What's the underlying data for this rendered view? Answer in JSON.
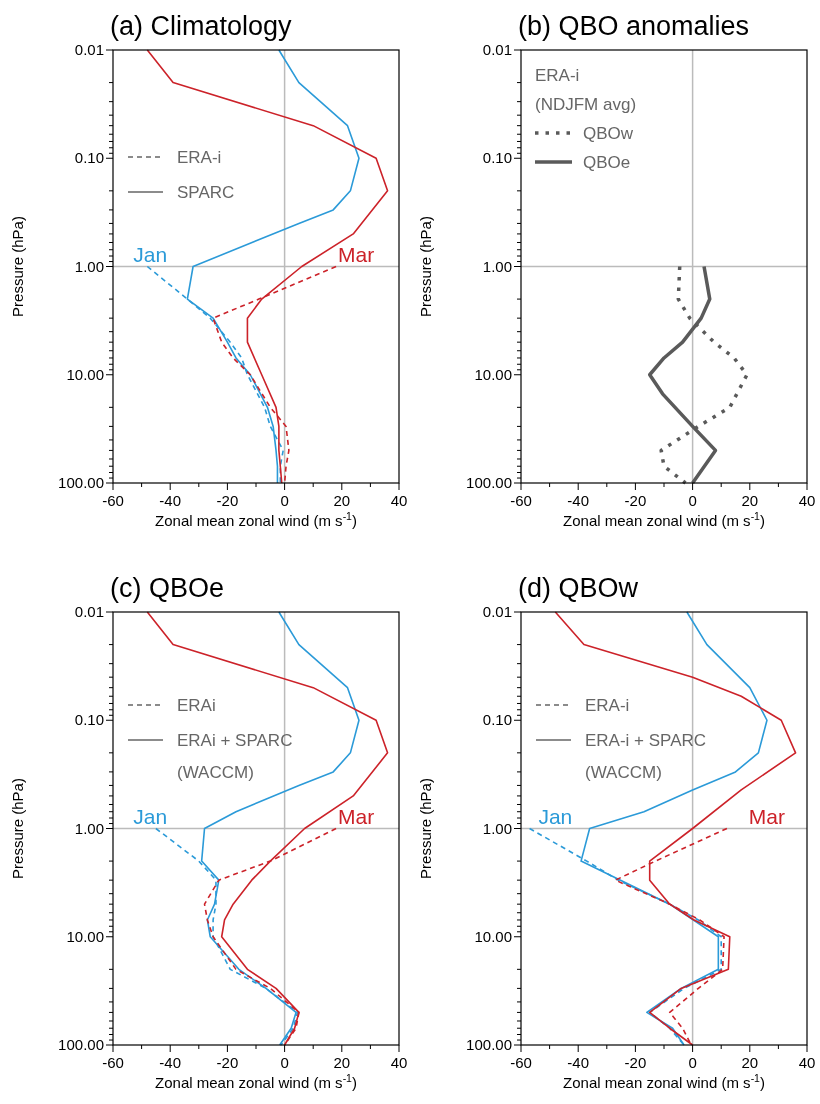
{
  "chart_data": [
    {
      "type": "line",
      "title": "(a) Climatology",
      "xlabel": "Zonal mean zonal wind (m s$^{-1}$)",
      "ylabel": "Pressure (hPa)",
      "log": "y",
      "xlim": [
        -60,
        40
      ],
      "xticks": [
        -60,
        {
          "value": -50,
          "label": null
        },
        -40,
        {
          "value": -30,
          "label": null
        },
        -20,
        {
          "value": -10,
          "label": null
        },
        0,
        {
          "value": 10,
          "label": null
        },
        20,
        {
          "value": 30,
          "label": null
        },
        40
      ],
      "ylim": [
        100,
        0.01
      ],
      "yticks": [
        {
          "value": 0.01,
          "label": "0.01"
        },
        {
          "value": 0.02,
          "label": null
        },
        {
          "value": 0.03,
          "label": null
        },
        {
          "value": 0.04,
          "label": null
        },
        {
          "value": 0.05,
          "label": null
        },
        {
          "value": 0.06,
          "label": null
        },
        {
          "value": 0.07,
          "label": null
        },
        {
          "value": 0.08,
          "label": null
        },
        {
          "value": 0.09,
          "label": null
        },
        {
          "value": 0.1,
          "label": "0.10"
        },
        {
          "value": 0.2,
          "label": null
        },
        {
          "value": 0.3,
          "label": null
        },
        {
          "value": 0.4,
          "label": null
        },
        {
          "value": 0.5,
          "label": null
        },
        {
          "value": 0.6,
          "label": null
        },
        {
          "value": 0.7,
          "label": null
        },
        {
          "value": 0.8,
          "label": null
        },
        {
          "value": 0.9,
          "label": null
        },
        {
          "value": 1,
          "label": "1.00"
        },
        {
          "value": 2,
          "label": null
        },
        {
          "value": 3,
          "label": null
        },
        {
          "value": 4,
          "label": null
        },
        {
          "value": 5,
          "label": null
        },
        {
          "value": 6,
          "label": null
        },
        {
          "value": 7,
          "label": null
        },
        {
          "value": 8,
          "label": null
        },
        {
          "value": 9,
          "label": null
        },
        {
          "value": 10,
          "label": "10.00"
        },
        {
          "value": 20,
          "label": null
        },
        {
          "value": 30,
          "label": null
        },
        {
          "value": 40,
          "label": null
        },
        {
          "value": 50,
          "label": null
        },
        {
          "value": 60,
          "label": null
        },
        {
          "value": 70,
          "label": null
        },
        {
          "value": 80,
          "label": null
        },
        {
          "value": 90,
          "label": null
        },
        {
          "value": 100,
          "label": "100.00"
        }
      ],
      "ref_lines": [
        {
          "axis": "x",
          "value": 0,
          "color": "#bbbbbb"
        },
        {
          "axis": "y",
          "value": 1,
          "color": "#bbbbbb"
        }
      ],
      "annotations": [
        "ERA-i",
        "SPARC",
        {
          "text": "Jan",
          "x": -47,
          "y": 1
        },
        {
          "text": "Mar",
          "x": 25,
          "y": 1
        }
      ],
      "series": [
        {
          "color": "#2b9ad8",
          "line_style": "dashed",
          "x": [
            -48,
            -34,
            -26,
            -19,
            -15,
            -13,
            -7,
            -5,
            -0.5,
            -1.5,
            -1.5
          ],
          "values": [
            1,
            2,
            3,
            5,
            7,
            10,
            20,
            30,
            50,
            70,
            100
          ]
        },
        {
          "color": "#2b9ad8",
          "line_style": "solid",
          "x": [
            -2,
            5,
            22,
            26,
            23,
            17,
            5,
            -32,
            -34,
            -25,
            -20,
            -17,
            -12,
            -6,
            -4,
            -3,
            -2.5,
            -2.5
          ],
          "values": [
            0.01,
            0.02,
            0.05,
            0.1,
            0.2,
            0.3,
            0.4,
            1,
            2,
            3,
            5,
            7,
            10,
            20,
            30,
            50,
            70,
            100
          ]
        },
        {
          "color": "#cc2229",
          "line_style": "dashed",
          "x": [
            18,
            -9,
            -25,
            -22,
            -18,
            -12,
            -5,
            0.5,
            1.5,
            0.5,
            0
          ],
          "values": [
            1,
            2,
            3,
            5,
            7,
            10,
            20,
            30,
            50,
            70,
            100
          ]
        },
        {
          "color": "#cc2229",
          "line_style": "solid",
          "x": [
            -48,
            -39,
            10,
            32,
            36,
            24,
            6,
            -8,
            -13,
            -13,
            -8,
            -3,
            -2,
            -2,
            -1.5,
            -1
          ],
          "values": [
            0.01,
            0.02,
            0.05,
            0.1,
            0.2,
            0.5,
            1,
            2,
            3,
            5,
            10,
            20,
            30,
            50,
            70,
            100
          ]
        }
      ]
    },
    {
      "type": "line",
      "title": "(b) QBO anomalies",
      "xlabel": "Zonal mean zonal wind (m s$^{-1}$)",
      "ylabel": "Pressure (hPa)",
      "log": "y",
      "xlim": [
        -60,
        40
      ],
      "xticks": [
        -60,
        {
          "value": -50,
          "label": null
        },
        -40,
        {
          "value": -30,
          "label": null
        },
        -20,
        {
          "value": -10,
          "label": null
        },
        0,
        {
          "value": 10,
          "label": null
        },
        20,
        {
          "value": 30,
          "label": null
        },
        40
      ],
      "ylim": [
        100,
        0.01
      ],
      "yticks": [
        {
          "value": 0.01,
          "label": "0.01"
        },
        {
          "value": 0.02,
          "label": null
        },
        {
          "value": 0.03,
          "label": null
        },
        {
          "value": 0.04,
          "label": null
        },
        {
          "value": 0.05,
          "label": null
        },
        {
          "value": 0.06,
          "label": null
        },
        {
          "value": 0.07,
          "label": null
        },
        {
          "value": 0.08,
          "label": null
        },
        {
          "value": 0.09,
          "label": null
        },
        {
          "value": 0.1,
          "label": "0.10"
        },
        {
          "value": 0.2,
          "label": null
        },
        {
          "value": 0.3,
          "label": null
        },
        {
          "value": 0.4,
          "label": null
        },
        {
          "value": 0.5,
          "label": null
        },
        {
          "value": 0.6,
          "label": null
        },
        {
          "value": 0.7,
          "label": null
        },
        {
          "value": 0.8,
          "label": null
        },
        {
          "value": 0.9,
          "label": null
        },
        {
          "value": 1,
          "label": "1.00"
        },
        {
          "value": 2,
          "label": null
        },
        {
          "value": 3,
          "label": null
        },
        {
          "value": 4,
          "label": null
        },
        {
          "value": 5,
          "label": null
        },
        {
          "value": 6,
          "label": null
        },
        {
          "value": 7,
          "label": null
        },
        {
          "value": 8,
          "label": null
        },
        {
          "value": 9,
          "label": null
        },
        {
          "value": 10,
          "label": "10.00"
        },
        {
          "value": 20,
          "label": null
        },
        {
          "value": 30,
          "label": null
        },
        {
          "value": 40,
          "label": null
        },
        {
          "value": 50,
          "label": null
        },
        {
          "value": 60,
          "label": null
        },
        {
          "value": 70,
          "label": null
        },
        {
          "value": 80,
          "label": null
        },
        {
          "value": 90,
          "label": null
        },
        {
          "value": 100,
          "label": "100.00"
        }
      ],
      "ref_lines": [
        {
          "axis": "x",
          "value": 0,
          "color": "#bbbbbb"
        },
        {
          "axis": "y",
          "value": 1,
          "color": "#bbbbbb"
        }
      ],
      "legend": "top left",
      "legend_title": "ERA-i (NDJFM avg)",
      "series": [
        {
          "name": "QBOw",
          "color": "#5a5a5a",
          "line_style": "dotted",
          "x": [
            -4.5,
            -5,
            -1,
            7.5,
            14.5,
            19,
            13,
            2,
            -11,
            -10,
            -2.5
          ],
          "values": [
            1,
            2,
            3,
            5,
            7,
            10,
            20,
            30,
            50,
            70,
            100
          ]
        },
        {
          "name": "QBOe",
          "color": "#5a5a5a",
          "line_style": "solid",
          "x": [
            4,
            6,
            3,
            -3.5,
            -10,
            -15,
            -10.5,
            0,
            8,
            0
          ],
          "values": [
            1,
            2,
            3,
            5,
            7,
            10,
            15,
            30,
            50,
            100
          ]
        }
      ]
    },
    {
      "type": "line",
      "title": "(c) QBOe",
      "xlabel": "Zonal mean zonal wind (m s$^{-1}$)",
      "ylabel": "Pressure (hPa)",
      "log": "y",
      "xlim": [
        -60,
        40
      ],
      "xticks": [
        -60,
        {
          "value": -50,
          "label": null
        },
        -40,
        {
          "value": -30,
          "label": null
        },
        -20,
        {
          "value": -10,
          "label": null
        },
        0,
        {
          "value": 10,
          "label": null
        },
        20,
        {
          "value": 30,
          "label": null
        },
        40
      ],
      "ylim": [
        100,
        0.01
      ],
      "yticks": [
        {
          "value": 0.01,
          "label": "0.01"
        },
        {
          "value": 0.02,
          "label": null
        },
        {
          "value": 0.03,
          "label": null
        },
        {
          "value": 0.04,
          "label": null
        },
        {
          "value": 0.05,
          "label": null
        },
        {
          "value": 0.06,
          "label": null
        },
        {
          "value": 0.07,
          "label": null
        },
        {
          "value": 0.08,
          "label": null
        },
        {
          "value": 0.09,
          "label": null
        },
        {
          "value": 0.1,
          "label": "0.10"
        },
        {
          "value": 0.2,
          "label": null
        },
        {
          "value": 0.3,
          "label": null
        },
        {
          "value": 0.4,
          "label": null
        },
        {
          "value": 0.5,
          "label": null
        },
        {
          "value": 0.6,
          "label": null
        },
        {
          "value": 0.7,
          "label": null
        },
        {
          "value": 0.8,
          "label": null
        },
        {
          "value": 0.9,
          "label": null
        },
        {
          "value": 1,
          "label": "1.00"
        },
        {
          "value": 2,
          "label": null
        },
        {
          "value": 3,
          "label": null
        },
        {
          "value": 4,
          "label": null
        },
        {
          "value": 5,
          "label": null
        },
        {
          "value": 6,
          "label": null
        },
        {
          "value": 7,
          "label": null
        },
        {
          "value": 8,
          "label": null
        },
        {
          "value": 9,
          "label": null
        },
        {
          "value": 10,
          "label": "10.00"
        },
        {
          "value": 20,
          "label": null
        },
        {
          "value": 30,
          "label": null
        },
        {
          "value": 40,
          "label": null
        },
        {
          "value": 50,
          "label": null
        },
        {
          "value": 60,
          "label": null
        },
        {
          "value": 70,
          "label": null
        },
        {
          "value": 80,
          "label": null
        },
        {
          "value": 90,
          "label": null
        },
        {
          "value": 100,
          "label": "100.00"
        }
      ],
      "ref_lines": [
        {
          "axis": "x",
          "value": 0,
          "color": "#bbbbbb"
        },
        {
          "axis": "y",
          "value": 1,
          "color": "#bbbbbb"
        }
      ],
      "annotations": [
        "ERAi",
        "ERAi + SPARC (WACCM)",
        {
          "text": "Jan",
          "x": -47,
          "y": 1
        },
        {
          "text": "Mar",
          "x": 25,
          "y": 1
        }
      ],
      "series": [
        {
          "color": "#2b9ad8",
          "line_style": "dashed",
          "x": [
            -45,
            -30,
            -24,
            -24,
            -25,
            -25,
            -19,
            -6.5,
            4.5,
            3,
            -1.2
          ],
          "values": [
            1,
            2,
            3,
            5,
            7,
            10,
            20,
            30,
            50,
            70,
            100
          ]
        },
        {
          "color": "#2b9ad8",
          "line_style": "solid",
          "x": [
            -2,
            5,
            22,
            26,
            23,
            17,
            5,
            -17,
            -28,
            -29,
            -23,
            -24.5,
            -27,
            -26,
            -16,
            -6.5,
            4,
            2.3,
            -1.7
          ],
          "values": [
            0.01,
            0.02,
            0.05,
            0.1,
            0.2,
            0.3,
            0.4,
            0.7,
            1,
            2,
            3,
            5,
            7,
            10,
            20,
            30,
            50,
            70,
            100
          ]
        },
        {
          "color": "#cc2229",
          "line_style": "dashed",
          "x": [
            18,
            -5,
            -23,
            -28,
            -27,
            -25,
            -17,
            -5,
            5,
            4,
            0
          ],
          "values": [
            1,
            2,
            3,
            5,
            7,
            10,
            20,
            30,
            50,
            70,
            100
          ]
        },
        {
          "color": "#cc2229",
          "line_style": "solid",
          "x": [
            -48,
            -39,
            10,
            32,
            36,
            24,
            7,
            -5,
            -11.5,
            -18,
            -21,
            -22,
            -13,
            -3,
            5,
            3.5,
            0
          ],
          "values": [
            0.01,
            0.02,
            0.05,
            0.1,
            0.2,
            0.5,
            1,
            2,
            3,
            5,
            7,
            10,
            20,
            30,
            50,
            70,
            100
          ]
        }
      ]
    },
    {
      "type": "line",
      "title": "(d) QBOw",
      "xlabel": "Zonal mean zonal wind (m s$^{-1}$)",
      "ylabel": "Pressure (hPa)",
      "log": "y",
      "xlim": [
        -60,
        40
      ],
      "xticks": [
        -60,
        {
          "value": -50,
          "label": null
        },
        -40,
        {
          "value": -30,
          "label": null
        },
        -20,
        {
          "value": -10,
          "label": null
        },
        0,
        {
          "value": 10,
          "label": null
        },
        20,
        {
          "value": 30,
          "label": null
        },
        40
      ],
      "ylim": [
        100,
        0.01
      ],
      "yticks": [
        {
          "value": 0.01,
          "label": "0.01"
        },
        {
          "value": 0.02,
          "label": null
        },
        {
          "value": 0.03,
          "label": null
        },
        {
          "value": 0.04,
          "label": null
        },
        {
          "value": 0.05,
          "label": null
        },
        {
          "value": 0.06,
          "label": null
        },
        {
          "value": 0.07,
          "label": null
        },
        {
          "value": 0.08,
          "label": null
        },
        {
          "value": 0.09,
          "label": null
        },
        {
          "value": 0.1,
          "label": "0.10"
        },
        {
          "value": 0.2,
          "label": null
        },
        {
          "value": 0.3,
          "label": null
        },
        {
          "value": 0.4,
          "label": null
        },
        {
          "value": 0.5,
          "label": null
        },
        {
          "value": 0.6,
          "label": null
        },
        {
          "value": 0.7,
          "label": null
        },
        {
          "value": 0.8,
          "label": null
        },
        {
          "value": 0.9,
          "label": null
        },
        {
          "value": 1,
          "label": "1.00"
        },
        {
          "value": 2,
          "label": null
        },
        {
          "value": 3,
          "label": null
        },
        {
          "value": 4,
          "label": null
        },
        {
          "value": 5,
          "label": null
        },
        {
          "value": 6,
          "label": null
        },
        {
          "value": 7,
          "label": null
        },
        {
          "value": 8,
          "label": null
        },
        {
          "value": 9,
          "label": null
        },
        {
          "value": 10,
          "label": "10.00"
        },
        {
          "value": 20,
          "label": null
        },
        {
          "value": 30,
          "label": null
        },
        {
          "value": 40,
          "label": null
        },
        {
          "value": 50,
          "label": null
        },
        {
          "value": 60,
          "label": null
        },
        {
          "value": 70,
          "label": null
        },
        {
          "value": 80,
          "label": null
        },
        {
          "value": 90,
          "label": null
        },
        {
          "value": 100,
          "label": "100.00"
        }
      ],
      "ref_lines": [
        {
          "axis": "x",
          "value": 0,
          "color": "#bbbbbb"
        },
        {
          "axis": "y",
          "value": 1,
          "color": "#bbbbbb"
        }
      ],
      "annotations": [
        "ERA-i",
        "ERA-i + SPARC (WACCM)",
        {
          "text": "Jan",
          "x": -48,
          "y": 1
        },
        {
          "text": "Mar",
          "x": 26,
          "y": 1
        }
      ],
      "series": [
        {
          "color": "#2b9ad8",
          "line_style": "dashed",
          "x": [
            -57,
            -37,
            -26,
            -8,
            2,
            10,
            10,
            -3,
            -15,
            -8,
            -3
          ],
          "values": [
            1,
            2,
            3,
            5,
            7,
            10,
            20,
            30,
            50,
            70,
            100
          ]
        },
        {
          "color": "#2b9ad8",
          "line_style": "solid",
          "x": [
            -2,
            5,
            20,
            26,
            23,
            15,
            0,
            -17,
            -36,
            -39,
            -8,
            9,
            9,
            -4,
            -16,
            -7,
            -3
          ],
          "values": [
            0.01,
            0.02,
            0.05,
            0.1,
            0.2,
            0.3,
            0.44,
            0.7,
            1,
            2,
            5,
            10,
            20,
            30,
            50,
            70,
            100
          ]
        },
        {
          "color": "#cc2229",
          "line_style": "dashed",
          "x": [
            12,
            -13,
            -27,
            -8,
            2.5,
            11,
            10.5,
            2,
            -8,
            -3.5,
            -0.5
          ],
          "values": [
            1,
            2,
            3,
            5,
            7,
            10,
            20,
            30,
            50,
            70,
            100
          ]
        },
        {
          "color": "#cc2229",
          "line_style": "solid",
          "x": [
            -48,
            -38,
            0,
            17,
            31,
            36,
            17,
            0,
            -15,
            -15,
            -8,
            0.5,
            13,
            12.5,
            -4,
            -15,
            -8,
            0
          ],
          "values": [
            0.01,
            0.02,
            0.04,
            0.06,
            0.1,
            0.2,
            0.44,
            1,
            2,
            3,
            5,
            7,
            10,
            20,
            30,
            50,
            70,
            100
          ]
        }
      ]
    }
  ]
}
